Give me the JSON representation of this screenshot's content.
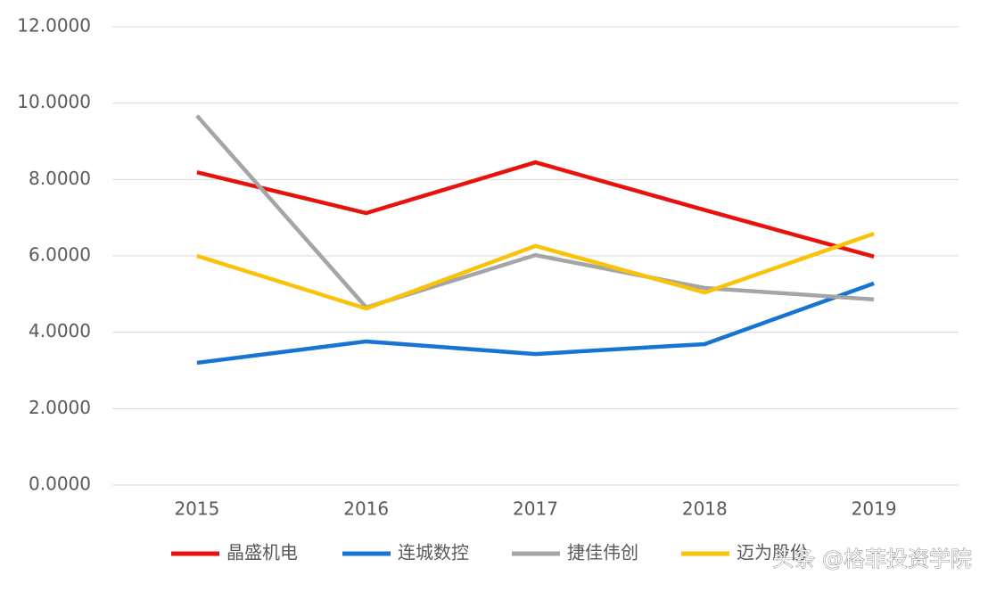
{
  "chart_data": {
    "type": "line",
    "categories": [
      "2015",
      "2016",
      "2017",
      "2018",
      "2019"
    ],
    "series": [
      {
        "name": "晶盛机电",
        "color": "#e8120c",
        "values": [
          8.19,
          7.12,
          8.45,
          7.2,
          5.98
        ]
      },
      {
        "name": "连城数控",
        "color": "#1874d2",
        "values": [
          3.2,
          3.76,
          3.43,
          3.69,
          5.28
        ]
      },
      {
        "name": "捷佳伟创",
        "color": "#a5a5a5",
        "values": [
          9.67,
          4.65,
          6.02,
          5.16,
          4.86
        ]
      },
      {
        "name": "迈为股份",
        "color": "#fbc20a",
        "values": [
          6.0,
          4.62,
          6.26,
          5.04,
          6.58
        ]
      }
    ],
    "ylim": [
      0,
      12
    ],
    "yticks": [
      {
        "value": 0,
        "label": "0.0000"
      },
      {
        "value": 2,
        "label": "2.0000"
      },
      {
        "value": 4,
        "label": "4.0000"
      },
      {
        "value": 6,
        "label": "6.0000"
      },
      {
        "value": 8,
        "label": "8.0000"
      },
      {
        "value": 10,
        "label": "10.0000"
      },
      {
        "value": 12,
        "label": "12.0000"
      }
    ],
    "grid": true,
    "legend": "bottom",
    "watermark": "头条 @格菲投资学院"
  }
}
